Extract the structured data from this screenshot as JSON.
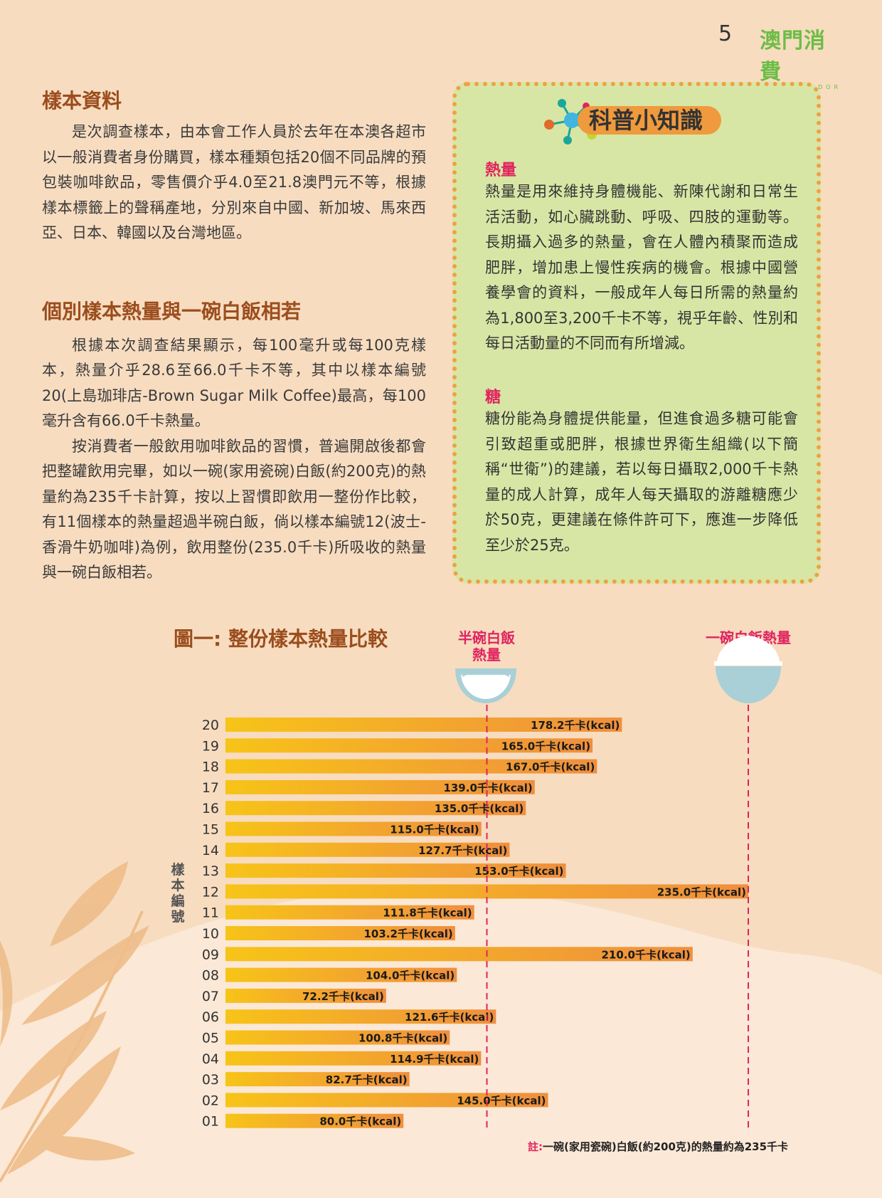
{
  "header": {
    "page_number": "5",
    "logo_text": "澳門消費",
    "logo_subtext": "CONSUMIDOR"
  },
  "section_samples": {
    "heading": "樣本資料",
    "paragraph": "是次調查樣本，由本會工作人員於去年在本澳各超市以一般消費者身份購買，樣本種類包括20個不同品牌的預包裝咖啡飲品，零售價介乎4.0至21.8澳門元不等，根據樣本標籤上的聲稱產地，分別來自中國、新加坡、馬來西亞、日本、韓國以及台灣地區。"
  },
  "section_calories": {
    "heading": "個別樣本熱量與一碗白飯相若",
    "paragraph1": "根據本次調查結果顯示，每100毫升或每100克樣本，熱量介乎28.6至66.0千卡不等，其中以樣本編號20(上島珈琲店-Brown Sugar Milk Coffee)最高，每100毫升含有66.0千卡熱量。",
    "paragraph2": "按消費者一般飲用咖啡飲品的習慣，普遍開啟後都會把整罐飲用完畢，如以一碗(家用瓷碗)白飯(約200克)的熱量約為235千卡計算，按以上習慣即飲用一整份作比較，有11個樣本的熱量超過半碗白飯，倘以樣本編號12(波士-香滑牛奶咖啡)為例，飲用整份(235.0千卡)所吸收的熱量與一碗白飯相若。"
  },
  "info_box": {
    "title": "科普小知識",
    "sub1_title": "熱量",
    "sub1_text": "熱量是用來維持身體機能、新陳代謝和日常生活活動，如心臟跳動、呼吸、四肢的運動等。長期攝入過多的熱量，會在人體內積聚而造成肥胖，增加患上慢性疾病的機會。根據中國營養學會的資料，一般成年人每日所需的熱量約為1,800至3,200千卡不等，視乎年齡、性別和每日活動量的不同而有所增減。",
    "sub2_title": "糖",
    "sub2_text": "糖份能為身體提供能量，但進食過多糖可能會引致超重或肥胖，根據世界衛生組織(以下簡稱“世衛”)的建議，若以每日攝取2,000千卡熱量的成人計算，成年人每天攝取的游離糖應少於50克，更建議在條件許可下，應進一步降低至少於25克。"
  },
  "chart_data": {
    "type": "bar",
    "orientation": "horizontal",
    "title": "圖一: 整份樣本熱量比較",
    "ylabel": "樣本編號",
    "value_suffix": "千卡(kcal)",
    "categories": [
      "20",
      "19",
      "18",
      "17",
      "16",
      "15",
      "14",
      "13",
      "12",
      "11",
      "10",
      "09",
      "08",
      "07",
      "06",
      "05",
      "04",
      "03",
      "02",
      "01"
    ],
    "values": [
      178.2,
      165.0,
      167.0,
      139.0,
      135.0,
      115.0,
      127.7,
      153.0,
      235.0,
      111.8,
      103.2,
      210.0,
      104.0,
      72.2,
      121.6,
      100.8,
      114.9,
      82.7,
      145.0,
      80.0
    ],
    "value_labels": [
      "178.2",
      "165.0",
      "167.0",
      "139.0",
      "135.0",
      "115.0",
      "127.7",
      "153.0",
      "235.0",
      "111.8",
      "103.2",
      "210.0",
      "104.0",
      "72.2",
      "121.6",
      "100.8",
      "114.9",
      "82.7",
      "145.0",
      "80.0"
    ],
    "reference_lines": [
      {
        "label": "半碗白飯熱量",
        "value": 117.5
      },
      {
        "label": "一碗白飯熱量",
        "value": 235.0
      }
    ],
    "xlim": [
      0,
      235.0
    ],
    "bar_color_start": "#f7c418",
    "bar_color_end": "#ef8f3e",
    "reference_color": "#e0245e"
  },
  "chart_labels": {
    "half_bowl_label": "半碗白飯\n熱量",
    "full_bowl_label": "一碗白飯熱量",
    "footnote_prefix": "註:",
    "footnote_text": "一碗(家用瓷碗)白飯(約200克)的熱量約為235千卡"
  },
  "colors": {
    "background": "#f7dcc0",
    "heading": "#9b4d1d",
    "accent_red": "#e0245e",
    "box_bg": "#d8e6a5",
    "box_border": "#f0a044",
    "logo_green": "#6cbd45"
  }
}
